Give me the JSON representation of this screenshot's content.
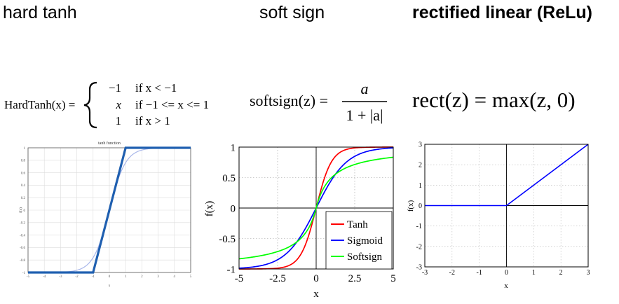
{
  "headings": {
    "hard_tanh": "hard tanh",
    "soft_sign": "soft sign",
    "relu": "rectified linear (ReLu)"
  },
  "formulas": {
    "hardtanh": {
      "lhs": "HardTanh(x) =",
      "cases": [
        {
          "value": "−1",
          "condition": "if x < −1"
        },
        {
          "value": "x",
          "condition": "if −1 <= x <= 1"
        },
        {
          "value": "1",
          "condition": "if x > 1"
        }
      ]
    },
    "softsign": {
      "lhs": "softsign(z) =",
      "numerator": "a",
      "denominator": "1 + |a|"
    },
    "rect": {
      "text": "rect(z) = max(z, 0)"
    }
  },
  "chart_data": [
    {
      "type": "line",
      "title": "tanh function",
      "xlabel": "x",
      "ylabel": "f(x)",
      "xlim": [
        -5,
        5
      ],
      "ylim": [
        -1,
        1
      ],
      "x_ticks": [
        -5,
        -4,
        -3,
        -2,
        -1,
        0,
        1,
        2,
        3,
        4,
        5
      ],
      "y_ticks": [
        -1,
        -0.8,
        -0.6,
        -0.4,
        -0.2,
        0,
        0.2,
        0.4,
        0.6,
        0.8,
        1
      ],
      "grid": true,
      "series": [
        {
          "kind": "hardtanh",
          "color": "#1f5fb0",
          "x": [
            -5,
            -1,
            1,
            5
          ],
          "y": [
            -1,
            -1,
            1,
            1
          ]
        },
        {
          "kind": "tanh",
          "color": "#a9b7ea",
          "x": [
            -5,
            5
          ],
          "y": [
            -1,
            1
          ]
        }
      ]
    },
    {
      "type": "line",
      "xlabel": "x",
      "ylabel": "f(x)",
      "xlim": [
        -5,
        5
      ],
      "ylim": [
        -1,
        1
      ],
      "x_ticks": [
        -5,
        -2.5,
        0,
        2.5,
        5
      ],
      "x_tick_labels": [
        "-5",
        "-2.5",
        "0",
        "2.5",
        "5"
      ],
      "y_ticks": [
        -1,
        -0.5,
        0,
        0.5,
        1
      ],
      "y_tick_labels": [
        "-1",
        "-0.5",
        "0",
        "0.5",
        "1"
      ],
      "grid": true,
      "legend": "bottom-right",
      "series": [
        {
          "name": "Tanh",
          "kind": "tanh",
          "color": "#ff0000"
        },
        {
          "name": "Sigmoid",
          "kind": "sigmoid2",
          "color": "#0000ff"
        },
        {
          "name": "Softsign",
          "kind": "softsign",
          "color": "#00ff00"
        }
      ]
    },
    {
      "type": "line",
      "xlabel": "x",
      "ylabel": "f(x)",
      "xlim": [
        -3,
        3
      ],
      "ylim": [
        -3,
        3
      ],
      "x_ticks": [
        -3,
        -2,
        -1,
        0,
        1,
        2,
        3
      ],
      "y_ticks": [
        -3,
        -2,
        -1,
        0,
        1,
        2,
        3
      ],
      "grid": true,
      "series": [
        {
          "kind": "relu",
          "color": "#0000ff",
          "x": [
            -3,
            0,
            3
          ],
          "y": [
            0,
            0,
            3
          ]
        }
      ]
    }
  ]
}
